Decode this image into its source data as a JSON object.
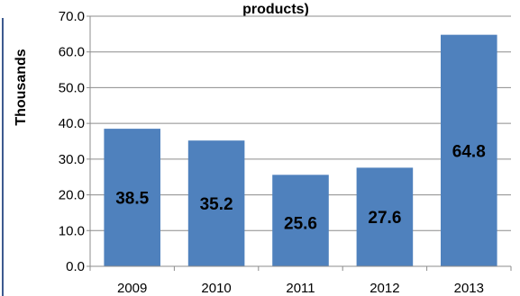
{
  "chart_data": {
    "type": "bar",
    "title": "products)",
    "ylabel": "Thousands",
    "categories": [
      "2009",
      "2010",
      "2011",
      "2012",
      "2013"
    ],
    "values": [
      38.5,
      35.2,
      25.6,
      27.6,
      64.8
    ],
    "data_labels": [
      "38.5",
      "35.2",
      "25.6",
      "27.6",
      "64.8"
    ],
    "ylim": [
      0,
      70
    ],
    "yticks": [
      "0.0",
      "10.0",
      "20.0",
      "30.0",
      "40.0",
      "50.0",
      "60.0",
      "70.0"
    ],
    "grid": true,
    "bar_color": "#4f81bd"
  }
}
